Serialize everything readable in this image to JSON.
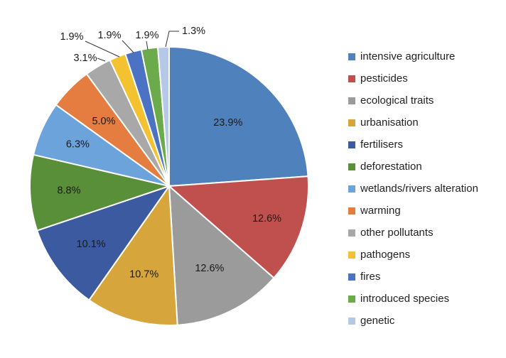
{
  "chart_data": {
    "type": "pie",
    "title": "",
    "slices": [
      {
        "label": "intensive agriculture",
        "value": 23.9,
        "display": "23.9%",
        "color": "#4f81bd"
      },
      {
        "label": "pesticides",
        "value": 12.6,
        "display": "12.6%",
        "color": "#c0504d"
      },
      {
        "label": "ecological traits",
        "value": 12.6,
        "display": "12.6%",
        "color": "#9b9b9b"
      },
      {
        "label": "urbanisation",
        "value": 10.7,
        "display": "10.7%",
        "color": "#d6a53b"
      },
      {
        "label": "fertilisers",
        "value": 10.1,
        "display": "10.1%",
        "color": "#3c5a9f"
      },
      {
        "label": "deforestation",
        "value": 8.8,
        "display": "8.8%",
        "color": "#5a8f3a"
      },
      {
        "label": "wetlands/rivers alteration",
        "value": 6.3,
        "display": "6.3%",
        "color": "#6da3db"
      },
      {
        "label": "warming",
        "value": 5.0,
        "display": "5.0%",
        "color": "#e47d3f"
      },
      {
        "label": "other pollutants",
        "value": 3.1,
        "display": "3.1%",
        "color": "#a8a8a8"
      },
      {
        "label": "pathogens",
        "value": 1.9,
        "display": "1.9%",
        "color": "#f2c230"
      },
      {
        "label": "fires",
        "value": 1.9,
        "display": "1.9%",
        "color": "#4c72c4"
      },
      {
        "label": "introduced species",
        "value": 1.9,
        "display": "1.9%",
        "color": "#6cab4c"
      },
      {
        "label": "genetic",
        "value": 1.3,
        "display": "1.3%",
        "color": "#b5c9e6"
      }
    ],
    "legend_position": "right",
    "slice_colors_order": "clockwise from 12 o'clock"
  }
}
